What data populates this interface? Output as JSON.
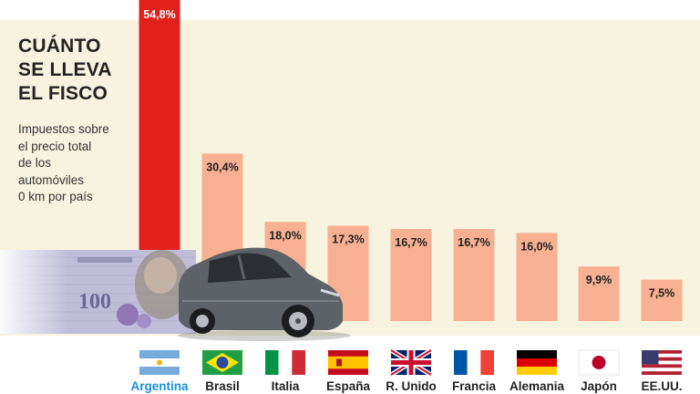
{
  "title": "CUÁNTO\nSE LLEVA\nEL FISCO",
  "subtitle": "Impuestos sobre\nel precio total\nde los\nautomóviles\n0 km por país",
  "banknote_value": "100",
  "colors": {
    "background_panel": "#f8f3df",
    "bar_default": "#f7b091",
    "bar_highlight": "#e3201b",
    "label_default": "#222222",
    "label_highlight": "#ffffff",
    "country_highlight": "#1a8fd8",
    "country_default": "#222222"
  },
  "chart_data": {
    "type": "bar",
    "title": "CUÁNTO SE LLEVA EL FISCO",
    "subtitle": "Impuestos sobre el precio total de los automóviles 0 km por país",
    "categories": [
      "Argentina",
      "Brasil",
      "Italia",
      "España",
      "R. Unido",
      "Francia",
      "Alemania",
      "Japón",
      "EE.UU."
    ],
    "values": [
      54.8,
      30.4,
      18.0,
      17.3,
      16.7,
      16.7,
      16.0,
      9.9,
      7.5
    ],
    "value_labels": [
      "54,8%",
      "30,4%",
      "18,0%",
      "17,3%",
      "16,7%",
      "16,7%",
      "16,0%",
      "9,9%",
      "7,5%"
    ],
    "flags": [
      "flag-argentina-icon",
      "flag-brazil-icon",
      "flag-italy-icon",
      "flag-spain-icon",
      "flag-uk-icon",
      "flag-france-icon",
      "flag-germany-icon",
      "flag-japan-icon",
      "flag-usa-icon"
    ],
    "highlight_index": 0,
    "xlabel": "",
    "ylabel": "",
    "ylim": [
      0,
      55
    ],
    "grid": false,
    "legend": "none"
  }
}
